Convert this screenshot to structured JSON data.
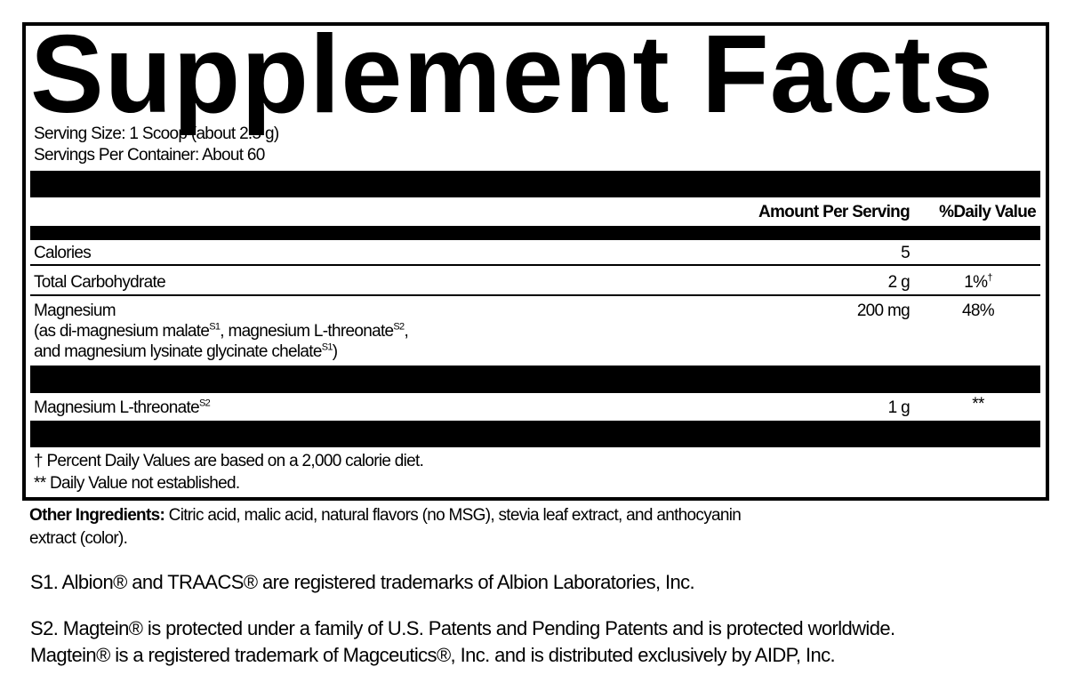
{
  "title": "Supplement Facts",
  "serving_size": "Serving Size: 1 Scoop (about 2.5 g)",
  "servings_per_container": "Servings Per Container: About 60",
  "columns": {
    "amount": "Amount Per Serving",
    "dv": "%Daily Value"
  },
  "rows": [
    {
      "name": "Calories",
      "amount": "5",
      "dv": ""
    },
    {
      "name": "Total Carbohydrate",
      "amount": "2 g",
      "dv": "1%",
      "dv_mark": "†"
    },
    {
      "name": "Magnesium",
      "amount": "200 mg",
      "dv": "48%",
      "sub1a": "(as di-magnesium malate",
      "sup1": "S1",
      "sub1b": ", magnesium L-threonate",
      "sup2": "S2",
      "sub1c": ",",
      "sub2a": "and magnesium lysinate glycinate chelate",
      "sup3": "S1",
      "sub2b": ")"
    },
    {
      "name": "Magnesium L-threonate",
      "name_sup": "S2",
      "amount": "1 g",
      "dv": "**"
    }
  ],
  "footnotes": [
    "† Percent Daily Values are based on a 2,000 calorie diet.",
    "** Daily Value not established."
  ],
  "other_ingredients": {
    "label": "Other Ingredients:",
    "text": " Citric acid, malic acid, natural flavors (no MSG), stevia leaf extract, and anthocyanin",
    "text2": "extract (color)."
  },
  "s1": "S1. Albion® and TRAACS® are registered trademarks of Albion Laboratories, Inc.",
  "s2_line1": "S2. Magtein® is protected under a family of U.S. Patents and Pending Patents and is protected worldwide.",
  "s2_line2": "Magtein® is a registered trademark of Magceutics®, Inc. and is distributed exclusively by AIDP, Inc."
}
